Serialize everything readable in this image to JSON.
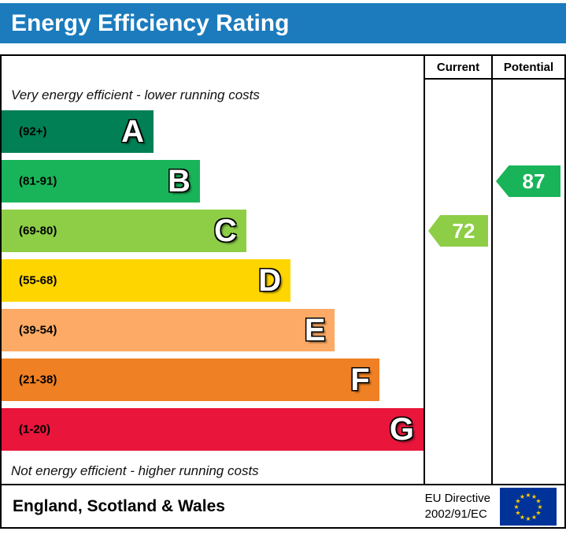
{
  "title": "Energy Efficiency Rating",
  "columns": {
    "current": "Current",
    "potential": "Potential"
  },
  "notes": {
    "top": "Very energy efficient - lower running costs",
    "bottom": "Not energy efficient - higher running costs"
  },
  "chart_data": {
    "type": "bar",
    "title": "Energy Efficiency Rating",
    "bands": [
      {
        "letter": "A",
        "range": "(92+)",
        "color": "#008054",
        "width_pct": 36
      },
      {
        "letter": "B",
        "range": "(81-91)",
        "color": "#19b459",
        "width_pct": 47
      },
      {
        "letter": "C",
        "range": "(69-80)",
        "color": "#8dce46",
        "width_pct": 58
      },
      {
        "letter": "D",
        "range": "(55-68)",
        "color": "#ffd500",
        "width_pct": 68.5
      },
      {
        "letter": "E",
        "range": "(39-54)",
        "color": "#fcaa65",
        "width_pct": 79
      },
      {
        "letter": "F",
        "range": "(21-38)",
        "color": "#ef8023",
        "width_pct": 89.5
      },
      {
        "letter": "G",
        "range": "(1-20)",
        "color": "#e9153b",
        "width_pct": 100
      }
    ],
    "current": {
      "value": "72",
      "band": "C",
      "color": "#8dce46"
    },
    "potential": {
      "value": "87",
      "band": "B",
      "color": "#19b459"
    }
  },
  "colors": {
    "title_bar": "#1b7bbd",
    "eu_flag_blue": "#003399",
    "eu_flag_stars": "#ffcc00"
  },
  "footer": {
    "region": "England, Scotland & Wales",
    "directive_line1": "EU Directive",
    "directive_line2": "2002/91/EC",
    "flag_icon": "eu-flag-icon"
  }
}
